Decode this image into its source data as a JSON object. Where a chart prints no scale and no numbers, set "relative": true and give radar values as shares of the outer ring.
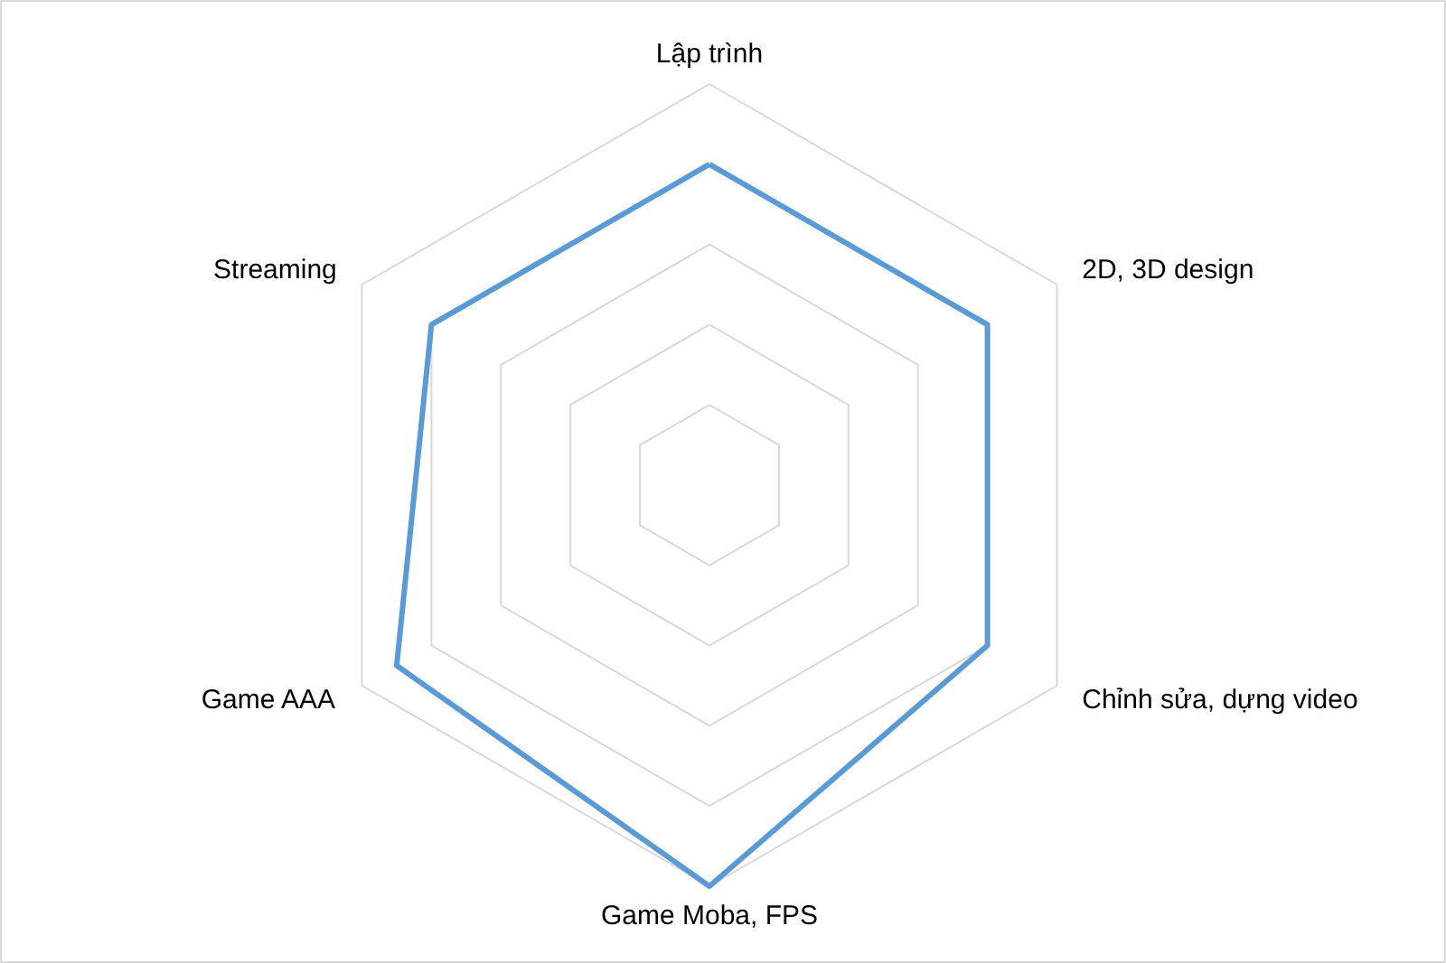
{
  "chart_data": {
    "type": "radar",
    "relative": true,
    "categories": [
      "Lập trình",
      "2D, 3D design",
      "Chỉnh sửa, dựng video",
      "Game Moba, FPS",
      "Game AAA",
      "Streaming"
    ],
    "series": [
      {
        "color": "#5b9bd5",
        "values": [
          0.8,
          0.8,
          0.8,
          1,
          0.9,
          0.8
        ]
      }
    ],
    "grid": true,
    "line_style": "solid"
  }
}
